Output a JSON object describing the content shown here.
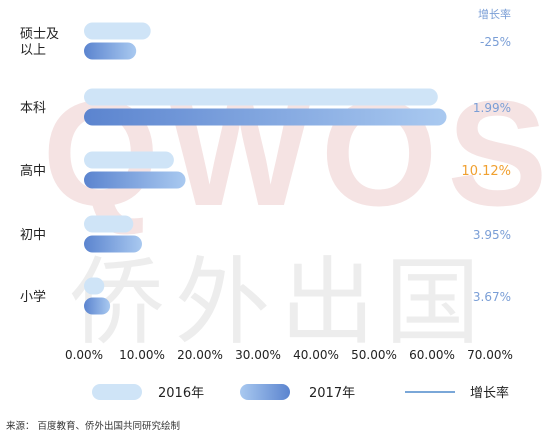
{
  "chart_data": {
    "type": "bar",
    "orientation": "horizontal",
    "categories": [
      "硕士及\n以上",
      "本科",
      "高中",
      "初中",
      "小学"
    ],
    "series": [
      {
        "name": "2016年",
        "values": [
          11.5,
          61.0,
          15.5,
          8.5,
          3.5
        ]
      },
      {
        "name": "2017年",
        "values": [
          9.0,
          62.5,
          17.5,
          10.0,
          4.5
        ]
      }
    ],
    "growth_label": "增长率",
    "growth_rates": [
      "-25%",
      "1.99%",
      "10.12%",
      "3.95%",
      "3.67%"
    ],
    "highlight_growth_index": 2,
    "xlim": [
      0,
      70
    ],
    "xticks": [
      "0.00%",
      "10.00%",
      "20.00%",
      "30.00%",
      "40.00%",
      "50.00%",
      "60.00%",
      "70.00%"
    ],
    "legend": {
      "placement": "bottom",
      "items": [
        "2016年",
        "2017年",
        "增长率"
      ]
    },
    "grid": false
  },
  "colors": {
    "bar_2016": "#cfe4f7",
    "bar_2017_start": "#5b84cf",
    "bar_2017_end": "#a9c9f0",
    "growth_text": "#7a9ed6",
    "growth_highlight": "#f0a030",
    "growth_line": "#7aa7d8",
    "watermark": "#f3dede"
  },
  "watermark": {
    "latin": "QWOS",
    "chinese": "侨外出国"
  },
  "footer": {
    "source": "来源：  百度教育、侨外出国共同研究绘制"
  }
}
